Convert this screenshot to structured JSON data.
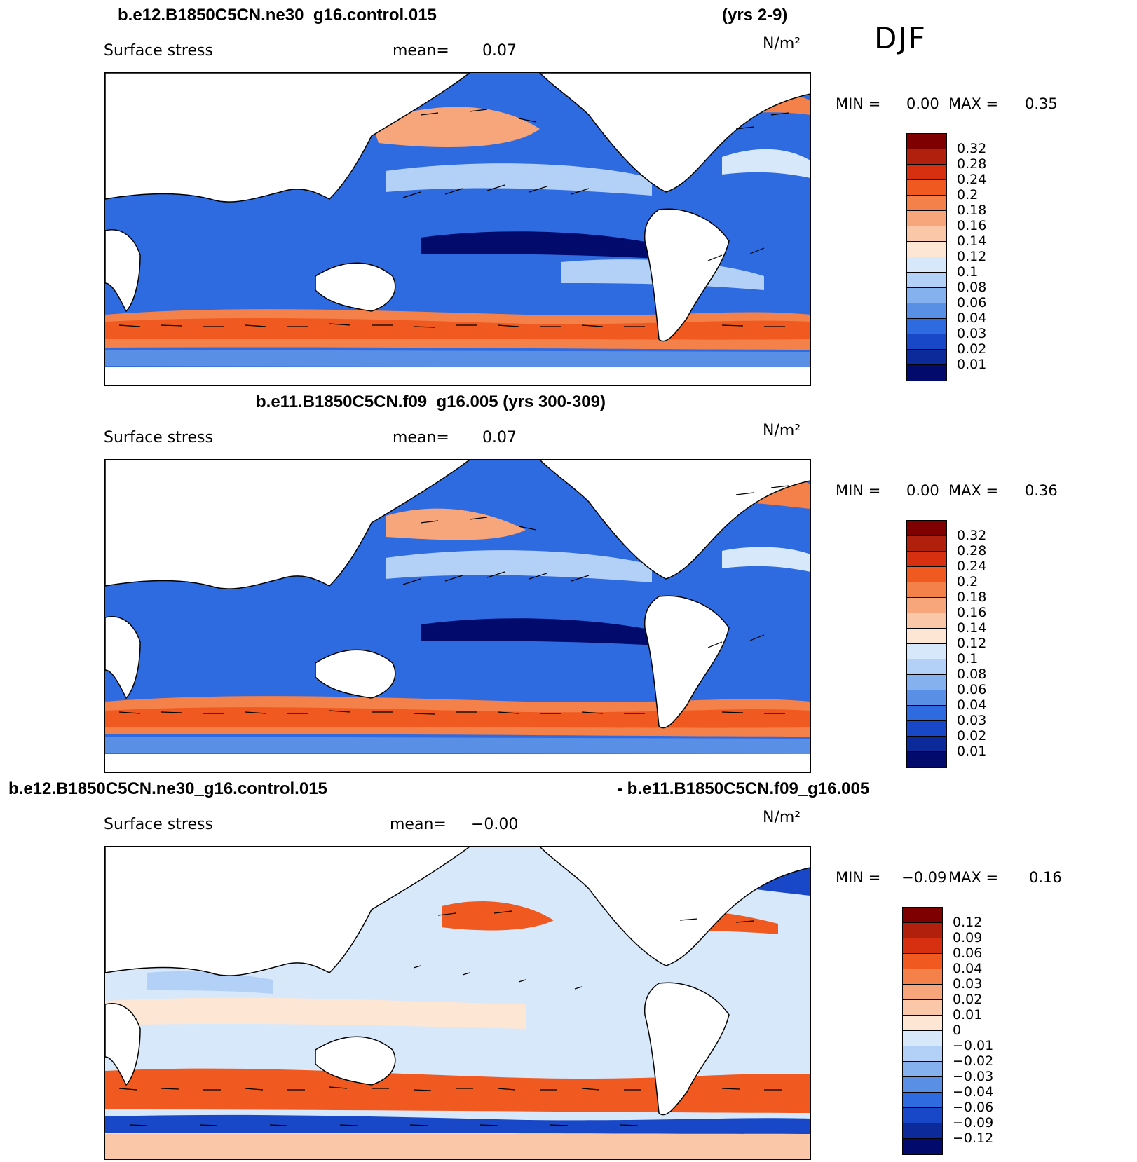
{
  "header": {
    "season": "DJF"
  },
  "panels": [
    {
      "title_left": "b.e12.B1850C5CN.ne30_g16.control.015",
      "title_right": "(yrs 2-9)",
      "variable": "Surface stress",
      "mean_label": "mean=",
      "mean_value": "0.07",
      "units": "N/m²",
      "min_label": "MIN =",
      "min_value": "0.00",
      "max_label": "MAX =",
      "max_value": "0.35",
      "legend_labels": [
        "0.32",
        "0.28",
        "0.24",
        "0.2",
        "0.18",
        "0.16",
        "0.14",
        "0.12",
        "0.1",
        "0.08",
        "0.06",
        "0.04",
        "0.03",
        "0.02",
        "0.01"
      ]
    },
    {
      "title_center": "b.e11.B1850C5CN.f09_g16.005 (yrs 300-309)",
      "variable": "Surface stress",
      "mean_label": "mean=",
      "mean_value": "0.07",
      "units": "N/m²",
      "min_label": "MIN =",
      "min_value": "0.00",
      "max_label": "MAX =",
      "max_value": "0.36",
      "legend_labels": [
        "0.32",
        "0.28",
        "0.24",
        "0.2",
        "0.18",
        "0.16",
        "0.14",
        "0.12",
        "0.1",
        "0.08",
        "0.06",
        "0.04",
        "0.03",
        "0.02",
        "0.01"
      ]
    },
    {
      "title_left": "b.e12.B1850C5CN.ne30_g16.control.015",
      "title_right": "- b.e11.B1850C5CN.f09_g16.005",
      "variable": "Surface stress",
      "mean_label": "mean=",
      "mean_value": "−0.00",
      "units": "N/m²",
      "min_label": "MIN =",
      "min_value": "−0.09",
      "max_label": "MAX =",
      "max_value": "0.16",
      "legend_labels": [
        "0.12",
        "0.09",
        "0.06",
        "0.04",
        "0.03",
        "0.02",
        "0.01",
        "0",
        "−0.01",
        "−0.02",
        "−0.03",
        "−0.04",
        "−0.06",
        "−0.09",
        "−0.12"
      ]
    }
  ],
  "colors": {
    "abs_scale": [
      "#7f0000",
      "#b0200c",
      "#d73010",
      "#f05a20",
      "#f4804a",
      "#f7a57a",
      "#fac8a8",
      "#fde6d4",
      "#d7e8fb",
      "#b3d0f6",
      "#86b1ef",
      "#5a8fe6",
      "#2f6be0",
      "#1848c8",
      "#0c2a9a",
      "#020a6c"
    ],
    "diff_scale": [
      "#7f0000",
      "#b0200c",
      "#d73010",
      "#f05a20",
      "#f4804a",
      "#f7a57a",
      "#fac8a8",
      "#fde6d4",
      "#d7e8fb",
      "#b3d0f6",
      "#86b1ef",
      "#5a8fe6",
      "#2f6be0",
      "#1848c8",
      "#0c2a9a",
      "#020a6c"
    ]
  }
}
